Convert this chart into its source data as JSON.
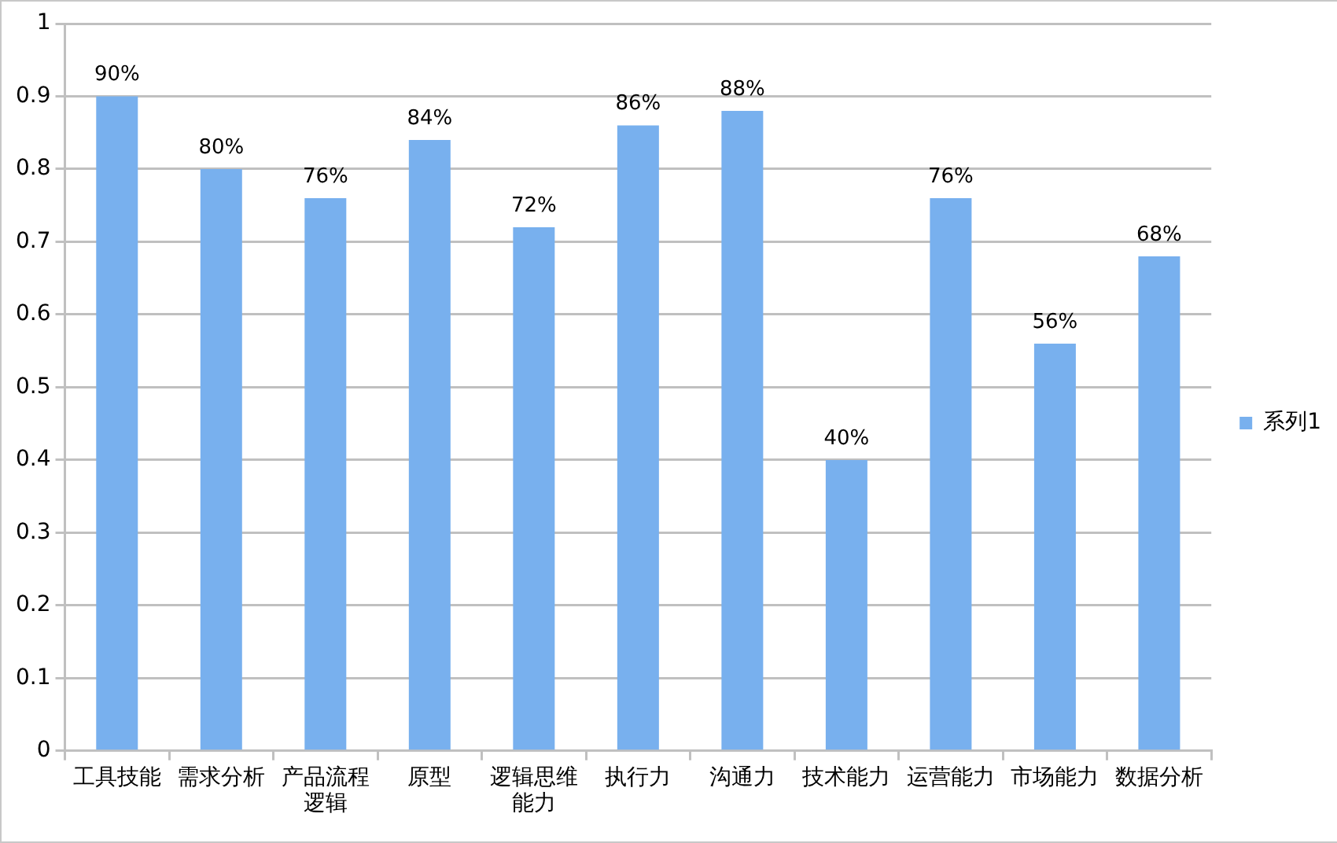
{
  "chart_data": {
    "type": "bar",
    "categories": [
      "工具技能",
      "需求分析",
      "产品流程逻辑",
      "原型",
      "逻辑思维能力",
      "执行力",
      "沟通力",
      "技术能力",
      "运营能力",
      "市场能力",
      "数据分析"
    ],
    "series": [
      {
        "name": "系列1",
        "color": "#78b0ee",
        "values": [
          0.9,
          0.8,
          0.76,
          0.84,
          0.72,
          0.86,
          0.88,
          0.4,
          0.76,
          0.56,
          0.68
        ],
        "value_labels": [
          "90%",
          "80%",
          "76%",
          "84%",
          "72%",
          "86%",
          "88%",
          "40%",
          "76%",
          "56%",
          "68%"
        ]
      }
    ],
    "ylim": [
      0,
      1
    ],
    "yticks": [
      0,
      0.1,
      0.2,
      0.3,
      0.4,
      0.5,
      0.6,
      0.7,
      0.8,
      0.9,
      1
    ],
    "grid": "y",
    "legend": "right"
  }
}
